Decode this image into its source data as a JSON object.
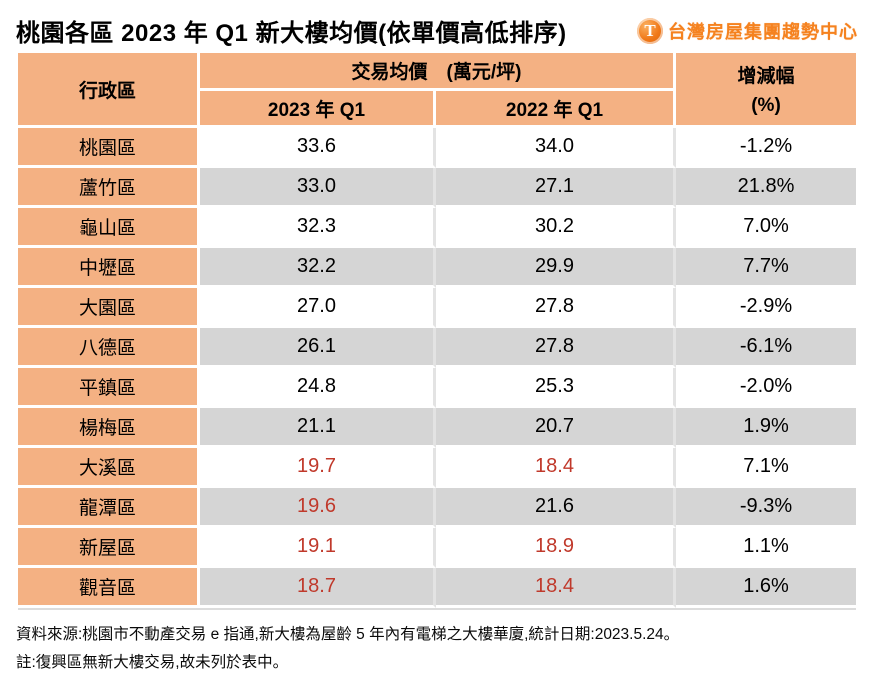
{
  "title": "桃園各區 2023 年 Q1 新大樓均價(依單價高低排序)",
  "logo": {
    "icon_letter": "T",
    "text": "台灣房屋集團趨勢中心",
    "color": "#F5821F"
  },
  "table": {
    "col_district": "行政區",
    "col_price_group": "交易均價　(萬元/坪)",
    "col_2023": "2023 年 Q1",
    "col_2022": "2022 年 Q1",
    "col_change_line1": "增減幅",
    "col_change_line2": "(%)",
    "rows": [
      {
        "district": "桃園區",
        "p2023": "33.6",
        "p2022": "34.0",
        "change": "-1.2%",
        "red2023": false,
        "red2022": false
      },
      {
        "district": "蘆竹區",
        "p2023": "33.0",
        "p2022": "27.1",
        "change": "21.8%",
        "red2023": false,
        "red2022": false
      },
      {
        "district": "龜山區",
        "p2023": "32.3",
        "p2022": "30.2",
        "change": "7.0%",
        "red2023": false,
        "red2022": false
      },
      {
        "district": "中壢區",
        "p2023": "32.2",
        "p2022": "29.9",
        "change": "7.7%",
        "red2023": false,
        "red2022": false
      },
      {
        "district": "大園區",
        "p2023": "27.0",
        "p2022": "27.8",
        "change": "-2.9%",
        "red2023": false,
        "red2022": false
      },
      {
        "district": "八德區",
        "p2023": "26.1",
        "p2022": "27.8",
        "change": "-6.1%",
        "red2023": false,
        "red2022": false
      },
      {
        "district": "平鎮區",
        "p2023": "24.8",
        "p2022": "25.3",
        "change": "-2.0%",
        "red2023": false,
        "red2022": false
      },
      {
        "district": "楊梅區",
        "p2023": "21.1",
        "p2022": "20.7",
        "change": "1.9%",
        "red2023": false,
        "red2022": false
      },
      {
        "district": "大溪區",
        "p2023": "19.7",
        "p2022": "18.4",
        "change": "7.1%",
        "red2023": true,
        "red2022": true
      },
      {
        "district": "龍潭區",
        "p2023": "19.6",
        "p2022": "21.6",
        "change": "-9.3%",
        "red2023": true,
        "red2022": false
      },
      {
        "district": "新屋區",
        "p2023": "19.1",
        "p2022": "18.9",
        "change": "1.1%",
        "red2023": true,
        "red2022": true
      },
      {
        "district": "觀音區",
        "p2023": "18.7",
        "p2022": "18.4",
        "change": "1.6%",
        "red2023": true,
        "red2022": true
      }
    ]
  },
  "footer": {
    "line1": "資料來源:桃園市不動產交易 e 指通,新大樓為屋齡 5 年內有電梯之大樓華廈,統計日期:2023.5.24。",
    "line2": "註:復興區無新大樓交易,故未列於表中。"
  },
  "colors": {
    "header_bg": "#F4B183",
    "row_alt_bg": "#D5D5D5",
    "red_text": "#C0392B",
    "logo_orange": "#F5821F"
  }
}
